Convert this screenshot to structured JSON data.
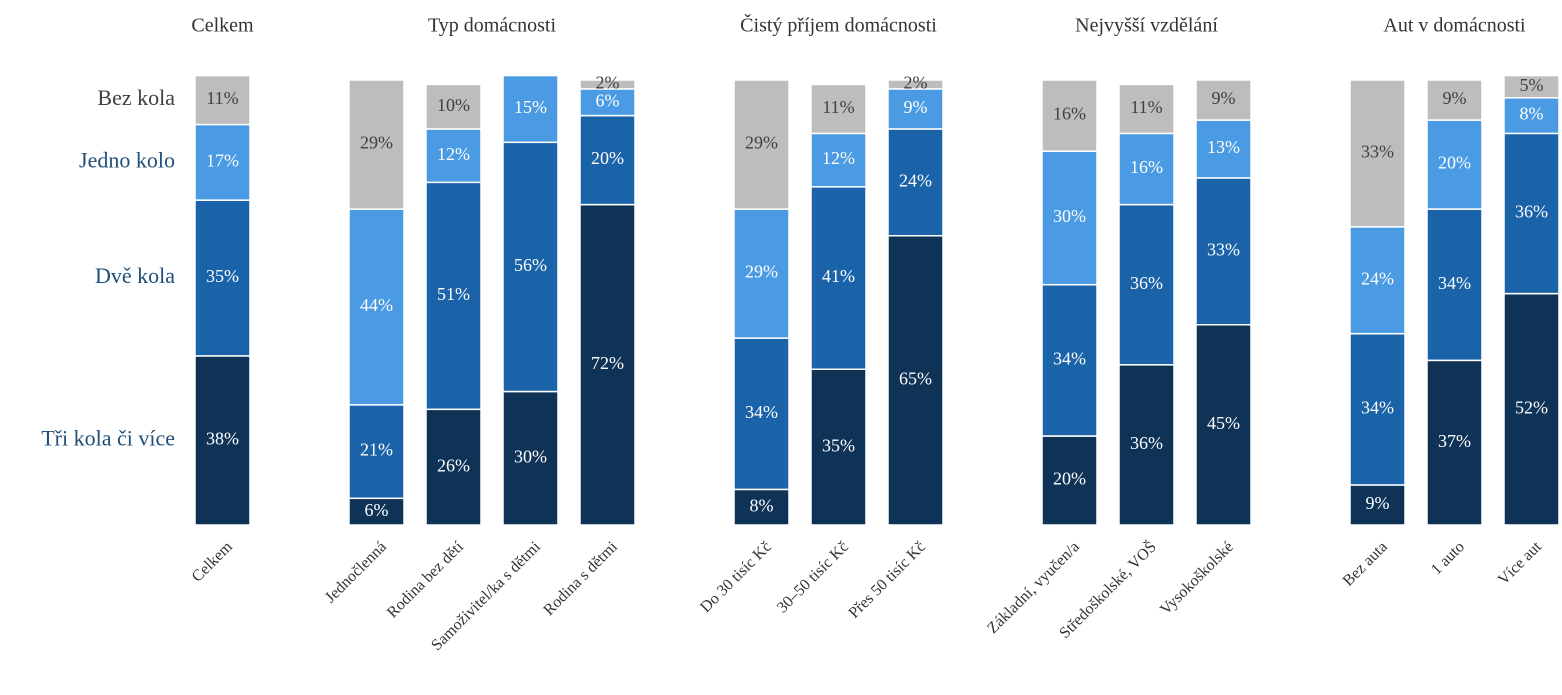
{
  "legend": [
    {
      "name": "Tři kola či více",
      "color": "#0f3257",
      "text_color": "#1f4e79"
    },
    {
      "name": "Dvě kola",
      "color": "#1a63a8",
      "text_color": "#1f4e79"
    },
    {
      "name": "Jedno kolo",
      "color": "#4a9be3",
      "text_color": "#1f4e79"
    },
    {
      "name": "Bez kola",
      "color": "#bdbdbd",
      "text_color": "#404040"
    }
  ],
  "ylim": [
    0,
    100
  ],
  "chart_data": [
    {
      "type": "bar",
      "stacked": true,
      "title": "Celkem",
      "categories": [
        "Celkem"
      ],
      "series": [
        {
          "values": [
            38
          ],
          "value_labels": [
            "38%"
          ]
        },
        {
          "values": [
            35
          ],
          "value_labels": [
            "35%"
          ]
        },
        {
          "values": [
            17
          ],
          "value_labels": [
            "17%"
          ]
        },
        {
          "values": [
            11
          ],
          "value_labels": [
            "11%"
          ]
        }
      ]
    },
    {
      "type": "bar",
      "stacked": true,
      "title": "Typ domácnosti",
      "categories": [
        "Jednočlenná",
        "Rodina bez dětí",
        "Samoživitel/ka s dětmi",
        "Rodina s dětmi"
      ],
      "series": [
        {
          "values": [
            6,
            26,
            30,
            72
          ],
          "value_labels": [
            "6%",
            "26%",
            "30%",
            "72%"
          ]
        },
        {
          "values": [
            21,
            51,
            56,
            20
          ],
          "value_labels": [
            "21%",
            "51%",
            "56%",
            "20%"
          ]
        },
        {
          "values": [
            44,
            12,
            15,
            6
          ],
          "value_labels": [
            "44%",
            "12%",
            "15%",
            "6%"
          ]
        },
        {
          "values": [
            29,
            10,
            null,
            2
          ],
          "value_labels": [
            "29%",
            "10%",
            null,
            "2%"
          ]
        }
      ]
    },
    {
      "type": "bar",
      "stacked": true,
      "title": "Čistý příjem domácnosti",
      "categories": [
        "Do 30 tisíc Kč",
        "30–50 tisíc Kč",
        "Přes 50 tisíc Kč"
      ],
      "series": [
        {
          "values": [
            8,
            35,
            65
          ],
          "value_labels": [
            "8%",
            "35%",
            "65%"
          ]
        },
        {
          "values": [
            34,
            41,
            24
          ],
          "value_labels": [
            "34%",
            "41%",
            "24%"
          ]
        },
        {
          "values": [
            29,
            12,
            9
          ],
          "value_labels": [
            "29%",
            "12%",
            "9%"
          ]
        },
        {
          "values": [
            29,
            11,
            2
          ],
          "value_labels": [
            "29%",
            "11%",
            "2%"
          ]
        }
      ]
    },
    {
      "type": "bar",
      "stacked": true,
      "title": "Nejvyšší vzdělání",
      "categories": [
        "Základní, vyučen/a",
        "Středoškolské, VOŠ",
        "Vysokoškolské"
      ],
      "series": [
        {
          "values": [
            20,
            36,
            45
          ],
          "value_labels": [
            "20%",
            "36%",
            "45%"
          ]
        },
        {
          "values": [
            34,
            36,
            33
          ],
          "value_labels": [
            "34%",
            "36%",
            "33%"
          ]
        },
        {
          "values": [
            30,
            16,
            13
          ],
          "value_labels": [
            "30%",
            "16%",
            "13%"
          ]
        },
        {
          "values": [
            16,
            11,
            9
          ],
          "value_labels": [
            "16%",
            "11%",
            "9%"
          ]
        }
      ]
    },
    {
      "type": "bar",
      "stacked": true,
      "title": "Aut v domácnosti",
      "categories": [
        "Bez auta",
        "1 auto",
        "Více aut"
      ],
      "series": [
        {
          "values": [
            9,
            37,
            52
          ],
          "value_labels": [
            "9%",
            "37%",
            "52%"
          ]
        },
        {
          "values": [
            34,
            34,
            36
          ],
          "value_labels": [
            "34%",
            "34%",
            "36%"
          ]
        },
        {
          "values": [
            24,
            20,
            8
          ],
          "value_labels": [
            "24%",
            "20%",
            "8%"
          ]
        },
        {
          "values": [
            33,
            9,
            5
          ],
          "value_labels": [
            "33%",
            "9%",
            "5%"
          ]
        }
      ]
    }
  ]
}
